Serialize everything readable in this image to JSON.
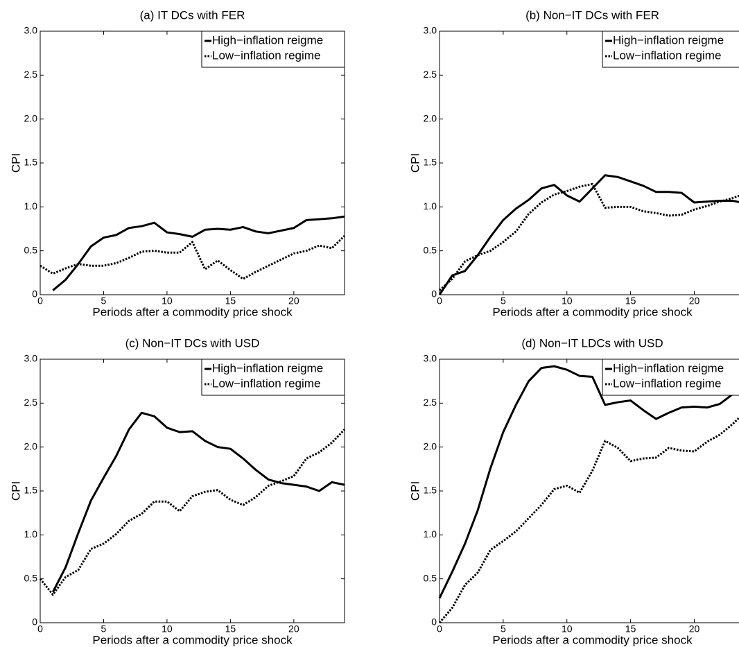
{
  "chart_data": [
    {
      "type": "line",
      "title": "(a) IT DCs with FER",
      "xlabel": "Periods after a commodity price shock",
      "ylabel": "CPI",
      "x": [
        0,
        1,
        2,
        3,
        4,
        5,
        6,
        7,
        8,
        9,
        10,
        11,
        12,
        13,
        14,
        15,
        16,
        17,
        18,
        19,
        20,
        21,
        22,
        23,
        24
      ],
      "xlim": [
        0,
        24
      ],
      "ylim": [
        0,
        3
      ],
      "xticks": [
        0,
        5,
        10,
        15,
        20
      ],
      "yticks": [
        0,
        0.5,
        {
          "value": 1,
          "label": "1.0"
        },
        1.5,
        {
          "value": 2,
          "label": "2.0"
        },
        2.5,
        {
          "value": 3,
          "label": "3.0"
        }
      ],
      "series": [
        {
          "name": "High−inflation reigme",
          "color": "#000000",
          "style": "solid",
          "values": [
            null,
            0.05,
            0.17,
            0.35,
            0.55,
            0.65,
            0.68,
            0.76,
            0.78,
            0.82,
            0.71,
            0.69,
            0.66,
            0.74,
            0.75,
            0.74,
            0.77,
            0.72,
            0.7,
            0.73,
            0.76,
            0.85,
            0.86,
            0.87,
            0.89
          ]
        },
        {
          "name": "Low−inflation regime",
          "color": "#000000",
          "style": "dotted",
          "values": [
            0.33,
            0.24,
            0.3,
            0.35,
            0.33,
            0.33,
            0.36,
            0.42,
            0.49,
            0.5,
            0.48,
            0.48,
            0.6,
            0.29,
            0.39,
            0.28,
            0.18,
            0.26,
            0.33,
            0.4,
            0.47,
            0.5,
            0.56,
            0.53,
            0.67
          ]
        }
      ]
    },
    {
      "type": "line",
      "title": "(b) Non−IT DCs with FER",
      "xlabel": "Periods after a commodity price shock",
      "ylabel": "CPI",
      "x": [
        0,
        1,
        2,
        3,
        4,
        5,
        6,
        7,
        8,
        9,
        10,
        11,
        12,
        13,
        14,
        15,
        16,
        17,
        18,
        19,
        20,
        21,
        22,
        23,
        24
      ],
      "xlim": [
        0,
        24
      ],
      "ylim": [
        0,
        3
      ],
      "xticks": [
        0,
        5,
        10,
        15,
        20
      ],
      "yticks": [
        0,
        0.5,
        {
          "value": 1,
          "label": "1.0"
        },
        1.5,
        {
          "value": 2,
          "label": "2.0"
        },
        2.5,
        {
          "value": 3,
          "label": "3.0"
        }
      ],
      "series": [
        {
          "name": "High−inflation reigme",
          "color": "#000000",
          "style": "solid",
          "values": [
            0.0,
            0.22,
            0.27,
            0.45,
            0.66,
            0.85,
            0.98,
            1.08,
            1.21,
            1.25,
            1.13,
            1.06,
            1.21,
            1.36,
            1.34,
            1.29,
            1.24,
            1.17,
            1.17,
            1.16,
            1.05,
            1.06,
            1.07,
            1.07,
            1.04
          ]
        },
        {
          "name": "Low−inflation regime",
          "color": "#000000",
          "style": "dotted",
          "values": [
            0.05,
            0.18,
            0.38,
            0.45,
            0.5,
            0.6,
            0.72,
            0.92,
            1.05,
            1.14,
            1.18,
            1.23,
            1.26,
            0.99,
            1.0,
            1.0,
            0.95,
            0.93,
            0.9,
            0.91,
            0.97,
            1.01,
            1.06,
            1.1,
            1.15
          ]
        }
      ]
    },
    {
      "type": "line",
      "title": "(c) Non−IT DCs with USD",
      "xlabel": "Periods after a commodity price shock",
      "ylabel": "CPI",
      "x": [
        0,
        1,
        2,
        3,
        4,
        5,
        6,
        7,
        8,
        9,
        10,
        11,
        12,
        13,
        14,
        15,
        16,
        17,
        18,
        19,
        20,
        21,
        22,
        23,
        24
      ],
      "xlim": [
        0,
        24
      ],
      "ylim": [
        0,
        3
      ],
      "xticks": [
        0,
        5,
        10,
        15,
        20
      ],
      "yticks": [
        0,
        0.5,
        {
          "value": 1,
          "label": "1.0"
        },
        1.5,
        {
          "value": 2,
          "label": "2.0"
        },
        2.5,
        {
          "value": 3,
          "label": "3.0"
        }
      ],
      "series": [
        {
          "name": "High−inflation reigme",
          "color": "#000000",
          "style": "solid",
          "values": [
            null,
            0.35,
            0.63,
            1.02,
            1.39,
            1.65,
            1.9,
            2.2,
            2.39,
            2.35,
            2.22,
            2.17,
            2.18,
            2.07,
            2.0,
            1.98,
            1.87,
            1.74,
            1.63,
            1.59,
            1.57,
            1.55,
            1.5,
            1.6,
            1.57
          ]
        },
        {
          "name": "Low−inflation regime",
          "color": "#000000",
          "style": "dotted",
          "values": [
            0.5,
            0.32,
            0.52,
            0.6,
            0.84,
            0.9,
            1.01,
            1.16,
            1.24,
            1.38,
            1.38,
            1.27,
            1.44,
            1.49,
            1.51,
            1.4,
            1.34,
            1.43,
            1.56,
            1.61,
            1.67,
            1.87,
            1.94,
            2.05,
            2.2
          ]
        }
      ]
    },
    {
      "type": "line",
      "title": "(d) Non−IT LDCs with USD",
      "xlabel": "Periods after a commodity price shock",
      "ylabel": "CPI",
      "x": [
        0,
        1,
        2,
        3,
        4,
        5,
        6,
        7,
        8,
        9,
        10,
        11,
        12,
        13,
        14,
        15,
        16,
        17,
        18,
        19,
        20,
        21,
        22,
        23,
        24
      ],
      "xlim": [
        0,
        24
      ],
      "ylim": [
        0,
        3
      ],
      "xticks": [
        0,
        5,
        10,
        15,
        20
      ],
      "yticks": [
        0,
        0.5,
        {
          "value": 1,
          "label": "1.0"
        },
        1.5,
        {
          "value": 2,
          "label": "2.0"
        },
        2.5,
        {
          "value": 3,
          "label": "3.0"
        }
      ],
      "series": [
        {
          "name": "High−inflation reigme",
          "color": "#000000",
          "style": "solid",
          "values": [
            0.28,
            0.58,
            0.9,
            1.28,
            1.76,
            2.17,
            2.48,
            2.75,
            2.9,
            2.92,
            2.88,
            2.81,
            2.8,
            2.48,
            2.51,
            2.53,
            2.42,
            2.32,
            2.39,
            2.45,
            2.46,
            2.45,
            2.49,
            2.6,
            2.6
          ]
        },
        {
          "name": "Low−inflation regime",
          "color": "#000000",
          "style": "dotted",
          "values": [
            0.0,
            0.17,
            0.43,
            0.57,
            0.83,
            0.93,
            1.04,
            1.19,
            1.34,
            1.52,
            1.56,
            1.48,
            1.73,
            2.07,
            1.99,
            1.84,
            1.87,
            1.88,
            1.99,
            1.96,
            1.95,
            2.06,
            2.14,
            2.26,
            2.4
          ]
        }
      ]
    }
  ]
}
